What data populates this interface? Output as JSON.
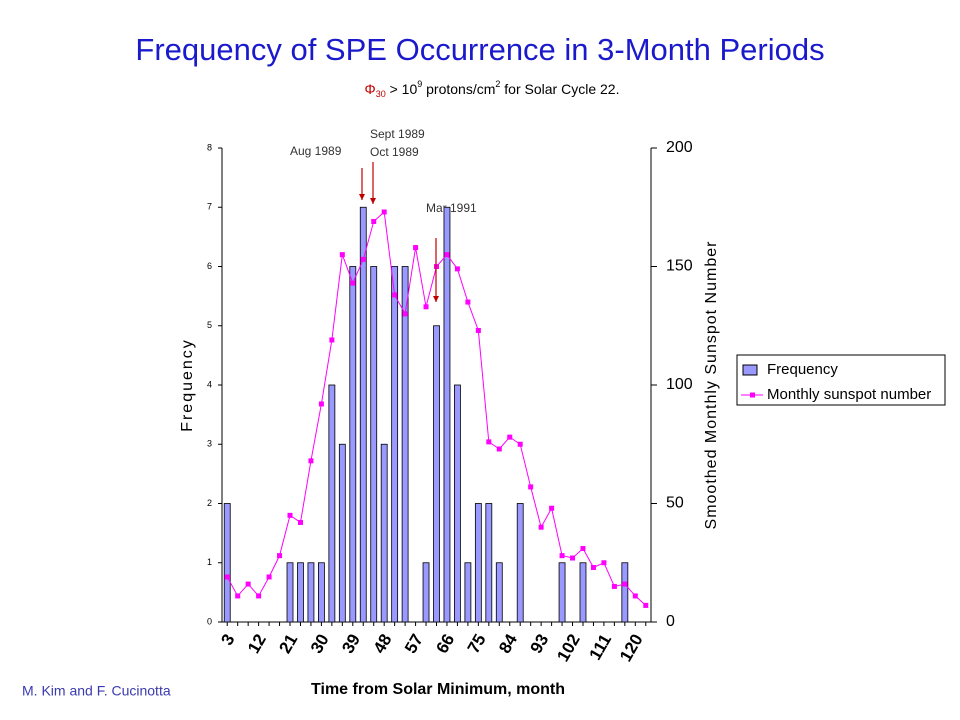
{
  "chart_data": {
    "type": "bar",
    "title": "Frequency of SPE Occurrence in 3-Month Periods",
    "subtitle": [
      "Φ",
      "30",
      " > 10",
      "9",
      " protons/cm",
      "2",
      " for Solar Cycle 22."
    ],
    "x_label": "Time from Solar Minimum, month",
    "y_label": "Frequency",
    "y2_label": "Smoothed Monthly Sunspot Number",
    "credit": "M. Kim and F. Cucinotta",
    "annotations": [
      "Aug 1989",
      "Sept 1989",
      "Oct 1989",
      "Mar 1991"
    ],
    "categories": [
      3,
      null,
      null,
      12,
      null,
      null,
      21,
      null,
      null,
      30,
      null,
      null,
      39,
      null,
      null,
      48,
      null,
      null,
      57,
      null,
      null,
      66,
      null,
      null,
      75,
      null,
      null,
      84,
      null,
      null,
      93,
      null,
      null,
      102,
      null,
      null,
      111,
      null,
      null,
      120,
      null
    ],
    "series": [
      {
        "name": "Frequency",
        "type": "bar",
        "color": "#9999ff",
        "axis": "y",
        "values": [
          2,
          0,
          0,
          0,
          0,
          0,
          1,
          1,
          1,
          1,
          4,
          3,
          6,
          7,
          6,
          3,
          6,
          6,
          0,
          1,
          5,
          7,
          4,
          1,
          2,
          2,
          1,
          0,
          2,
          0,
          0,
          0,
          1,
          0,
          1,
          0,
          0,
          0,
          1,
          0,
          0
        ]
      },
      {
        "name": "Monthly sunspot number",
        "type": "line",
        "color": "#ff00ff",
        "axis": "y2",
        "values": [
          19,
          11,
          16,
          11,
          19,
          28,
          45,
          42,
          68,
          92,
          119,
          155,
          143,
          153,
          169,
          173,
          138,
          130,
          158,
          133,
          150,
          155,
          149,
          135,
          123,
          76,
          73,
          78,
          75,
          57,
          40,
          48,
          28,
          27,
          31,
          23,
          25,
          15,
          16,
          11,
          7
        ]
      }
    ],
    "ylim": [
      0,
      8
    ],
    "yticks": [
      0,
      1,
      2,
      3,
      4,
      5,
      6,
      7,
      8
    ],
    "y2lim": [
      0,
      200
    ],
    "y2ticks": [
      0,
      50,
      100,
      150,
      200
    ],
    "legend": "right"
  }
}
